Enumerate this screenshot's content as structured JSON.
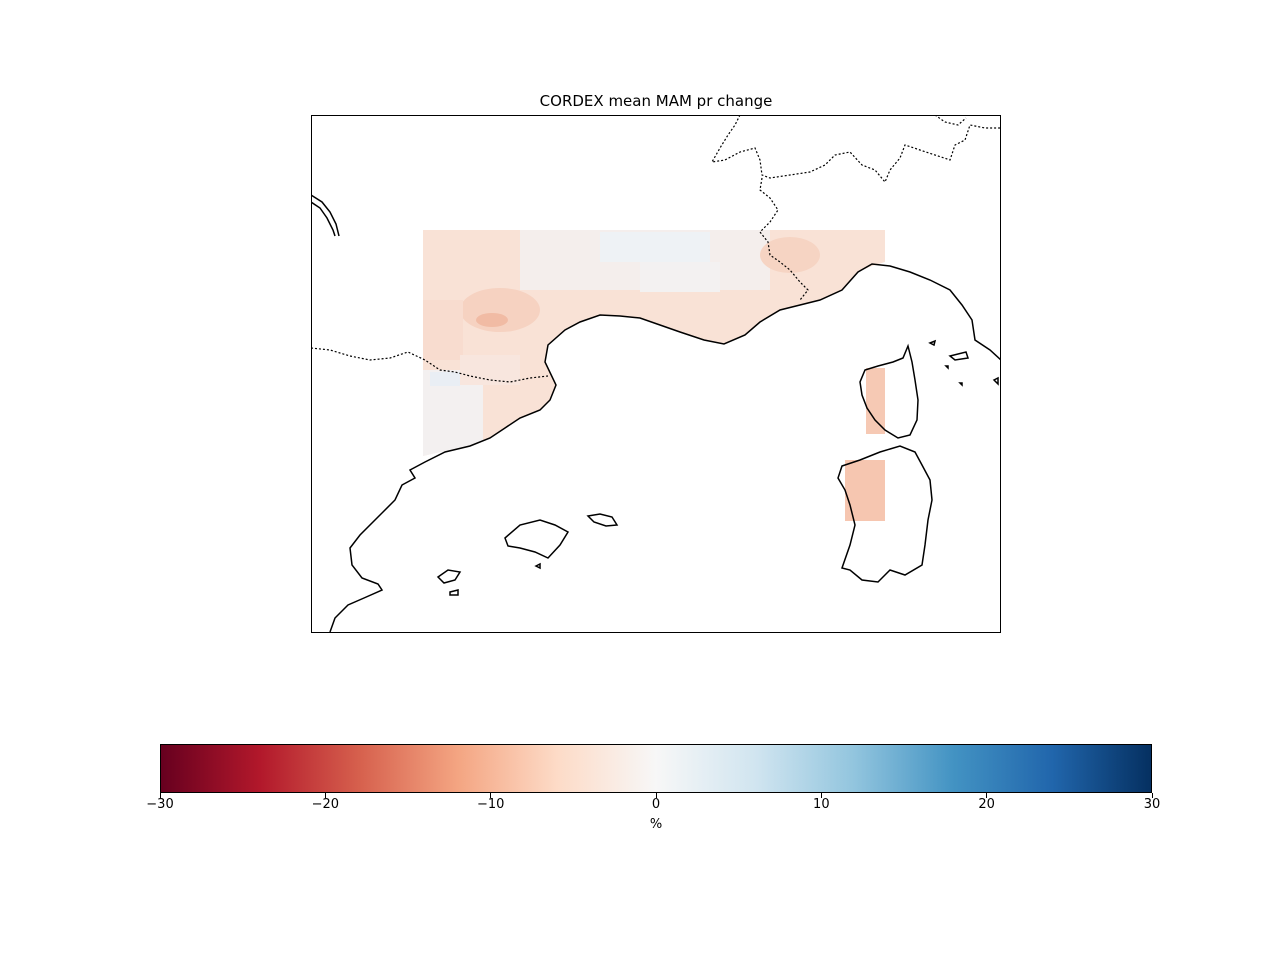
{
  "figure": {
    "title": "CORDEX mean MAM pr change"
  },
  "map": {
    "type": "gridded-field",
    "variable": "pr change",
    "season": "MAM",
    "colormap": "RdBu",
    "dominant_color": "#f7e0d4",
    "coastline_color": "#000000"
  },
  "colorbar": {
    "label": "%",
    "vmin": -30,
    "vmax": 30,
    "ticks": [
      {
        "value": -30,
        "label": "−30"
      },
      {
        "value": -20,
        "label": "−20"
      },
      {
        "value": -10,
        "label": "−10"
      },
      {
        "value": 0,
        "label": "0"
      },
      {
        "value": 10,
        "label": "10"
      },
      {
        "value": 20,
        "label": "20"
      },
      {
        "value": 30,
        "label": "30"
      }
    ],
    "gradient_colors": [
      "#67001f",
      "#b2182b",
      "#d6604d",
      "#f4a582",
      "#fddbc7",
      "#f7f7f7",
      "#d1e5f0",
      "#92c5de",
      "#4393c3",
      "#2166ac",
      "#053061"
    ]
  }
}
